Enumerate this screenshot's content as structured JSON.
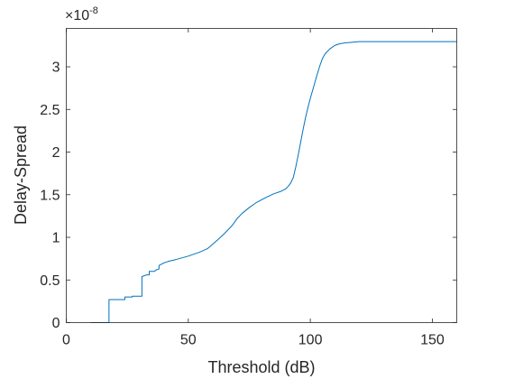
{
  "chart_data": {
    "type": "line",
    "xlabel": "Threshold (dB)",
    "ylabel": "Delay-Spread",
    "y_multiplier": {
      "base": "×10",
      "exponent": "-8"
    },
    "xlim": [
      0,
      160
    ],
    "ylim": [
      0,
      3.45
    ],
    "x_ticks": [
      0,
      50,
      100,
      150
    ],
    "x_tick_labels": [
      "0",
      "50",
      "100",
      "150"
    ],
    "y_ticks": [
      0,
      0.5,
      1,
      1.5,
      2,
      2.5,
      3
    ],
    "y_tick_labels": [
      "0",
      "0.5",
      "1",
      "1.5",
      "2",
      "2.5",
      "3"
    ],
    "grid": false,
    "line_color": "#0072BD",
    "series": [
      {
        "x": [
          10,
          17.5,
          17.5,
          24,
          24,
          27,
          27,
          31,
          31,
          32,
          33,
          34,
          34,
          36,
          37,
          38,
          38,
          40,
          41,
          42,
          45,
          50,
          55,
          58,
          60,
          62,
          65,
          68,
          70,
          72,
          75,
          78,
          80,
          82,
          85,
          88,
          90,
          91,
          92,
          93,
          94,
          95,
          96,
          97,
          98,
          99,
          100,
          101,
          102,
          103,
          104,
          105,
          106,
          107,
          108,
          109,
          110,
          112,
          114,
          116,
          118,
          120,
          125,
          130,
          140,
          150,
          160
        ],
        "y": [
          0,
          0,
          0.27,
          0.27,
          0.3,
          0.3,
          0.31,
          0.31,
          0.54,
          0.55,
          0.56,
          0.56,
          0.6,
          0.6,
          0.62,
          0.63,
          0.67,
          0.7,
          0.71,
          0.72,
          0.74,
          0.78,
          0.83,
          0.87,
          0.92,
          0.97,
          1.05,
          1.14,
          1.22,
          1.28,
          1.35,
          1.41,
          1.44,
          1.47,
          1.51,
          1.54,
          1.57,
          1.6,
          1.64,
          1.7,
          1.82,
          1.96,
          2.11,
          2.26,
          2.4,
          2.52,
          2.63,
          2.73,
          2.83,
          2.93,
          3.02,
          3.1,
          3.15,
          3.18,
          3.21,
          3.23,
          3.25,
          3.27,
          3.28,
          3.285,
          3.29,
          3.295,
          3.295,
          3.295,
          3.295,
          3.295,
          3.295
        ]
      }
    ]
  }
}
